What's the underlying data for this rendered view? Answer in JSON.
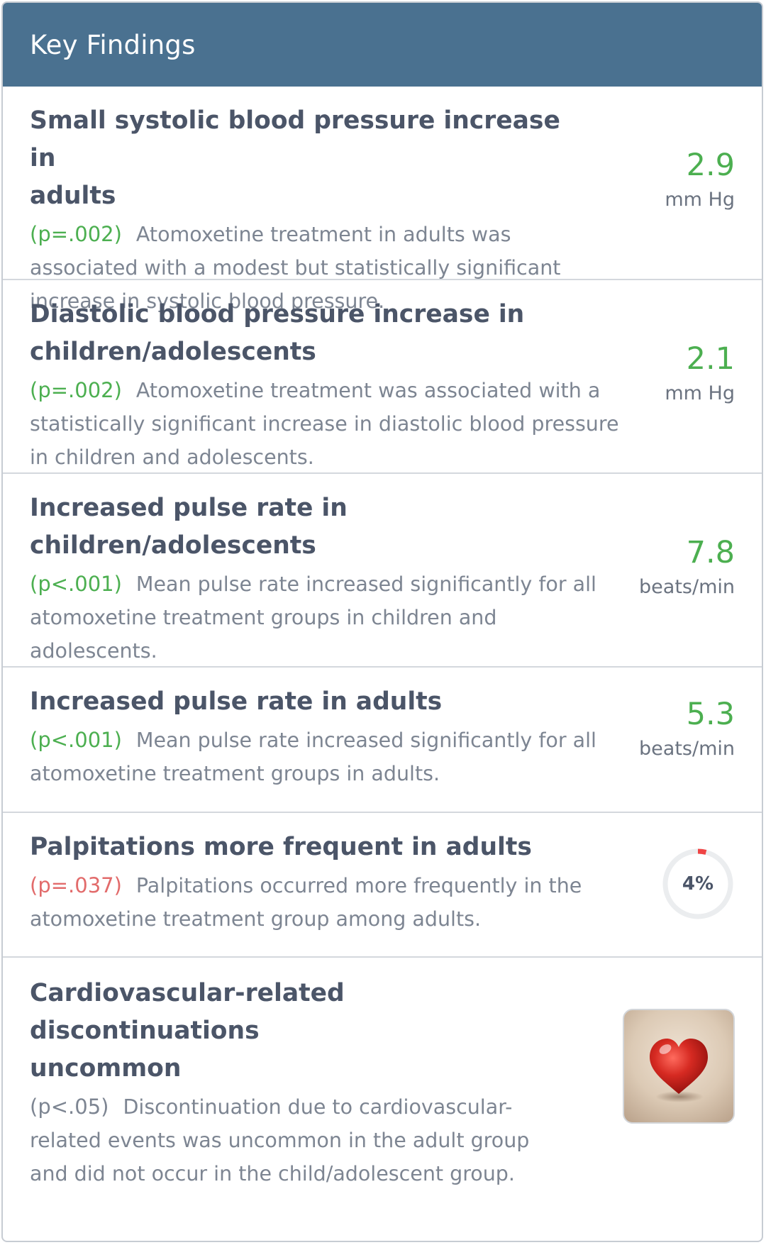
{
  "header": {
    "title": "Key Findings"
  },
  "findings": [
    {
      "title_line1": "Small systolic blood pressure increase in",
      "title_line2": "adults",
      "p_value": "(p=.002)",
      "p_status": "significant",
      "description": "Atomoxetine treatment in adults was associated with a modest but statistically significant increase in systolic blood pressure.",
      "metric_value": "2.9",
      "metric_unit": "mm Hg"
    },
    {
      "title_line1": "Diastolic blood pressure increase in",
      "title_line2": "children/adolescents",
      "p_value": "(p=.002)",
      "p_status": "significant",
      "description": "Atomoxetine treatment was associated with a statistically significant increase in diastolic blood pressure in children and adolescents.",
      "metric_value": "2.1",
      "metric_unit": "mm Hg"
    },
    {
      "title_line1": "Increased pulse rate in",
      "title_line2": "children/adolescents",
      "p_value": "(p<.001)",
      "p_status": "significant",
      "description": "Mean pulse rate increased significantly for all atomoxetine treatment groups in children and adolescents.",
      "metric_value": "7.8",
      "metric_unit": "beats/min"
    },
    {
      "title_line1": "Increased pulse rate in adults",
      "title_line2": "",
      "p_value": "(p<.001)",
      "p_status": "significant",
      "description": "Mean pulse rate increased significantly for all atomoxetine treatment groups in adults.",
      "metric_value": "5.3",
      "metric_unit": "beats/min"
    },
    {
      "title_line1": "Palpitations more frequent in adults",
      "title_line2": "",
      "p_value": "(p=.037)",
      "p_status": "warning",
      "description": "Palpitations occurred more frequently in the atomoxetine treatment group among adults.",
      "ring_label": "4%",
      "ring_fraction": 0.04
    },
    {
      "title_line1": "Cardiovascular-related discontinuations",
      "title_line2": "uncommon",
      "p_value": "(p<.05)",
      "p_status": "neutral",
      "description": "Discontinuation due to cardiovascular-related events was uncommon in the adult group and did not occur in the child/adolescent group.",
      "image_icon": "heart-icon"
    }
  ],
  "colors": {
    "header_bg": "#4a7190",
    "significant": "#4caf50",
    "warning": "#e26b6b",
    "ring_track": "#ebedef",
    "ring_fill": "#ef4444",
    "heart": "#c8201f"
  }
}
